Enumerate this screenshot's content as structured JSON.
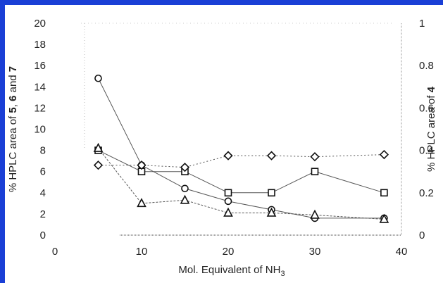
{
  "colors": {
    "frame_accent": "#1a3fd6",
    "axis": "#444444",
    "series_line": "#555555",
    "marker": "#111111"
  },
  "chart_data": {
    "type": "line",
    "title": "",
    "xlabel": "Mol. Equivalent of NH3",
    "xlabel_base": "Mol. Equivalent of NH",
    "xlabel_sub": "3",
    "ylabel_left_parts": [
      "% HPLC area of ",
      "5",
      ", ",
      "6",
      " and ",
      "7"
    ],
    "ylabel_right_parts": [
      "% HPLC area of ",
      "4"
    ],
    "xlim": [
      0,
      40
    ],
    "ylim_left": [
      0,
      20
    ],
    "ylim_right": [
      0,
      1
    ],
    "x_ticks": [
      "0",
      "10",
      "20",
      "30",
      "40"
    ],
    "y_left_ticks": [
      "0",
      "2",
      "4",
      "6",
      "8",
      "10",
      "12",
      "14",
      "16",
      "18",
      "20"
    ],
    "y_right_ticks": [
      "0",
      "0.2",
      "0.4",
      "0.6",
      "0.8",
      "1"
    ],
    "grid": false,
    "legend": "none",
    "series": [
      {
        "marker": "circle",
        "axis": "left",
        "x": [
          5,
          10,
          15,
          20,
          25,
          30,
          38
        ],
        "y": [
          14.8,
          6.6,
          4.4,
          3.2,
          2.4,
          1.6,
          1.6
        ]
      },
      {
        "marker": "square",
        "axis": "left",
        "x": [
          5,
          10,
          15,
          20,
          25,
          30,
          38
        ],
        "y": [
          8.0,
          6.0,
          6.0,
          4.0,
          4.0,
          6.0,
          4.0
        ]
      },
      {
        "marker": "triangle",
        "axis": "left",
        "x": [
          5,
          10,
          15,
          20,
          25,
          30,
          38
        ],
        "y": [
          8.2,
          3.0,
          3.3,
          2.1,
          2.1,
          1.9,
          1.5
        ]
      },
      {
        "marker": "diamond",
        "axis": "right",
        "x": [
          5,
          10,
          15,
          20,
          25,
          30,
          38
        ],
        "y": [
          0.33,
          0.33,
          0.32,
          0.375,
          0.375,
          0.37,
          0.38
        ]
      }
    ]
  }
}
